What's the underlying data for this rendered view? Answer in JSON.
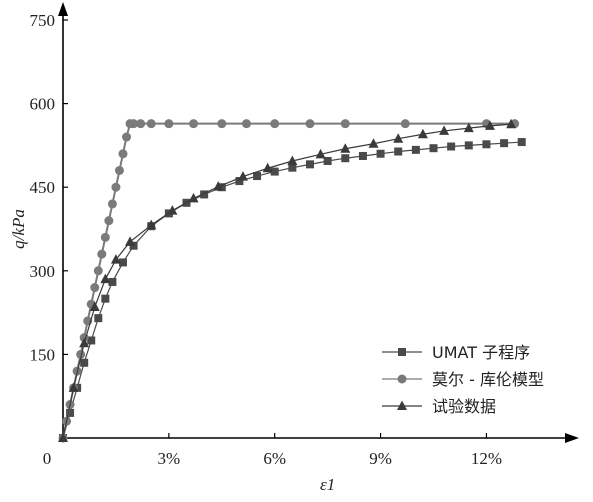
{
  "chart_data": {
    "type": "line",
    "xlabel": "ε1",
    "ylabel": "q/kPa",
    "xlim": [
      0,
      0.14
    ],
    "ylim": [
      0,
      750
    ],
    "x_ticks": [
      {
        "value": 0,
        "label": "0"
      },
      {
        "value": 0.03,
        "label": "3%"
      },
      {
        "value": 0.06,
        "label": "6%"
      },
      {
        "value": 0.09,
        "label": "9%"
      },
      {
        "value": 0.12,
        "label": "12%"
      }
    ],
    "y_ticks": [
      {
        "value": 150,
        "label": "150"
      },
      {
        "value": 300,
        "label": "300"
      },
      {
        "value": 450,
        "label": "450"
      },
      {
        "value": 600,
        "label": "600"
      },
      {
        "value": 750,
        "label": "750"
      }
    ],
    "legend_position": "bottom-right",
    "grid": false,
    "series": [
      {
        "name": "UMAT 子程序",
        "marker": "square",
        "color": "#4a4a4a",
        "x": [
          0,
          0.002,
          0.004,
          0.006,
          0.008,
          0.01,
          0.012,
          0.014,
          0.017,
          0.02,
          0.025,
          0.03,
          0.035,
          0.04,
          0.045,
          0.05,
          0.055,
          0.06,
          0.065,
          0.07,
          0.075,
          0.08,
          0.085,
          0.09,
          0.095,
          0.1,
          0.105,
          0.11,
          0.115,
          0.12,
          0.125,
          0.13
        ],
        "y": [
          0,
          45,
          90,
          135,
          175,
          215,
          250,
          280,
          315,
          345,
          380,
          403,
          422,
          437,
          450,
          461,
          470,
          478,
          485,
          491,
          497,
          502,
          506,
          510,
          514,
          517,
          520,
          523,
          525,
          527,
          529,
          531
        ]
      },
      {
        "name": "莫尔 - 库伦模型",
        "marker": "circle",
        "color": "#7a7a7a",
        "x": [
          0,
          0.001,
          0.002,
          0.003,
          0.004,
          0.005,
          0.006,
          0.007,
          0.008,
          0.009,
          0.01,
          0.011,
          0.012,
          0.013,
          0.014,
          0.015,
          0.016,
          0.017,
          0.018,
          0.019,
          0.02,
          0.022,
          0.025,
          0.03,
          0.037,
          0.045,
          0.052,
          0.06,
          0.07,
          0.08,
          0.097,
          0.12,
          0.128
        ],
        "y": [
          0,
          30,
          60,
          90,
          120,
          150,
          180,
          210,
          240,
          270,
          300,
          330,
          360,
          390,
          420,
          450,
          480,
          510,
          540,
          564,
          564,
          564,
          564,
          564,
          564,
          564,
          564,
          564,
          564,
          564,
          564,
          564,
          564
        ]
      },
      {
        "name": "试验数据",
        "marker": "triangle",
        "color": "#3a3a3a",
        "x": [
          0,
          0.003,
          0.006,
          0.009,
          0.012,
          0.015,
          0.019,
          0.025,
          0.031,
          0.037,
          0.044,
          0.051,
          0.058,
          0.065,
          0.073,
          0.08,
          0.088,
          0.095,
          0.102,
          0.108,
          0.115,
          0.121,
          0.127
        ],
        "y": [
          0,
          90,
          170,
          235,
          285,
          320,
          352,
          382,
          408,
          430,
          451,
          469,
          484,
          497,
          509,
          519,
          528,
          537,
          545,
          551,
          556,
          560,
          563
        ]
      }
    ]
  }
}
